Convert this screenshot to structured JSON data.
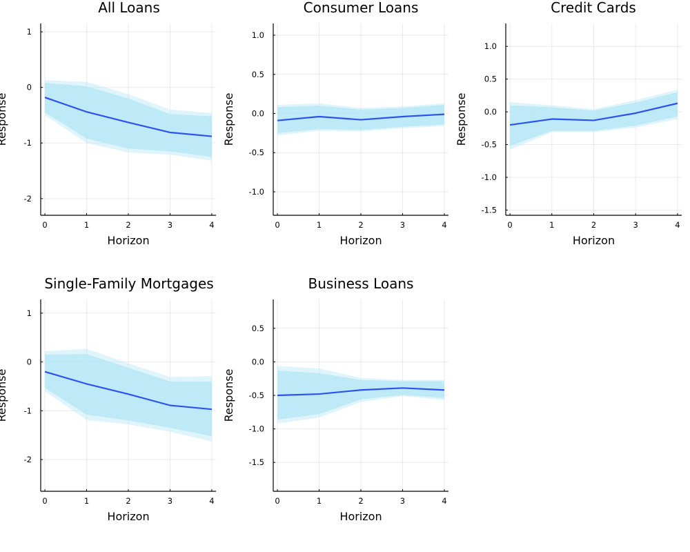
{
  "chart_data": [
    {
      "type": "line",
      "title": "All Loans",
      "xlabel": "Horizon",
      "ylabel": "Response",
      "x": [
        0,
        1,
        2,
        3,
        4
      ],
      "xticks": [
        "0",
        "1",
        "2",
        "3",
        "4"
      ],
      "yticks": [
        "-2",
        "-1",
        "0",
        "1"
      ],
      "xlim": [
        -0.1,
        4.1
      ],
      "ylim": [
        -2.3,
        1.15
      ],
      "grid": true,
      "series": [
        {
          "values": [
            -0.18,
            -0.44,
            -0.63,
            -0.81,
            -0.88
          ],
          "band_inner": {
            "lower": [
              -0.45,
              -0.92,
              -1.1,
              -1.15,
              -1.25
            ],
            "upper": [
              0.08,
              0.02,
              -0.2,
              -0.48,
              -0.52
            ]
          },
          "band_outer": {
            "lower": [
              -0.5,
              -1.0,
              -1.17,
              -1.21,
              -1.32
            ],
            "upper": [
              0.13,
              0.1,
              -0.12,
              -0.4,
              -0.46
            ]
          },
          "color": "#2b51f0",
          "band_color": "#b9e6f6"
        }
      ]
    },
    {
      "type": "line",
      "title": "Consumer Loans",
      "xlabel": "Horizon",
      "ylabel": "Response",
      "x": [
        0,
        1,
        2,
        3,
        4
      ],
      "xticks": [
        "0",
        "1",
        "2",
        "3",
        "4"
      ],
      "yticks": [
        "-1.0",
        "-0.5",
        "0.0",
        "0.5",
        "1.0"
      ],
      "xlim": [
        -0.1,
        4.1
      ],
      "ylim": [
        -1.3,
        1.15
      ],
      "grid": true,
      "series": [
        {
          "values": [
            -0.09,
            -0.04,
            -0.08,
            -0.04,
            -0.01
          ],
          "band_inner": {
            "lower": [
              -0.25,
              -0.2,
              -0.21,
              -0.17,
              -0.14
            ],
            "upper": [
              0.08,
              0.1,
              0.05,
              0.07,
              0.11
            ]
          },
          "band_outer": {
            "lower": [
              -0.28,
              -0.22,
              -0.23,
              -0.19,
              -0.16
            ],
            "upper": [
              0.11,
              0.13,
              0.07,
              0.09,
              0.13
            ]
          },
          "color": "#2b51f0",
          "band_color": "#b9e6f6"
        }
      ]
    },
    {
      "type": "line",
      "title": "Credit Cards",
      "xlabel": "Horizon",
      "ylabel": "Response",
      "x": [
        0,
        1,
        2,
        3,
        4
      ],
      "xticks": [
        "0",
        "1",
        "2",
        "3",
        "4"
      ],
      "yticks": [
        "-1.5",
        "-1.0",
        "-0.5",
        "0.0",
        "0.5",
        "1.0"
      ],
      "xlim": [
        -0.1,
        4.1
      ],
      "ylim": [
        -1.58,
        1.35
      ],
      "grid": true,
      "series": [
        {
          "values": [
            -0.2,
            -0.11,
            -0.13,
            -0.02,
            0.13
          ],
          "band_inner": {
            "lower": [
              -0.52,
              -0.29,
              -0.29,
              -0.21,
              -0.07
            ],
            "upper": [
              0.1,
              0.07,
              0.02,
              0.14,
              0.3
            ]
          },
          "band_outer": {
            "lower": [
              -0.58,
              -0.31,
              -0.31,
              -0.24,
              -0.11
            ],
            "upper": [
              0.15,
              0.1,
              0.04,
              0.18,
              0.34
            ]
          },
          "color": "#2b51f0",
          "band_color": "#b9e6f6"
        }
      ]
    },
    {
      "type": "line",
      "title": "Single-Family Mortgages",
      "xlabel": "Horizon",
      "ylabel": "Response",
      "x": [
        0,
        1,
        2,
        3,
        4
      ],
      "xticks": [
        "0",
        "1",
        "2",
        "3",
        "4"
      ],
      "yticks": [
        "-2",
        "-1",
        "0",
        "1"
      ],
      "xlim": [
        -0.1,
        4.1
      ],
      "ylim": [
        -2.65,
        1.28
      ],
      "grid": true,
      "series": [
        {
          "values": [
            -0.2,
            -0.45,
            -0.66,
            -0.89,
            -0.97
          ],
          "band_inner": {
            "lower": [
              -0.53,
              -1.08,
              -1.2,
              -1.35,
              -1.52
            ],
            "upper": [
              0.15,
              0.16,
              -0.12,
              -0.4,
              -0.4
            ]
          },
          "band_outer": {
            "lower": [
              -0.6,
              -1.19,
              -1.28,
              -1.43,
              -1.63
            ],
            "upper": [
              0.22,
              0.27,
              -0.03,
              -0.31,
              -0.29
            ]
          },
          "color": "#2b51f0",
          "band_color": "#b9e6f6"
        }
      ]
    },
    {
      "type": "line",
      "title": "Business Loans",
      "xlabel": "Horizon",
      "ylabel": "Response",
      "x": [
        0,
        1,
        2,
        3,
        4
      ],
      "xticks": [
        "0",
        "1",
        "2",
        "3",
        "4"
      ],
      "yticks": [
        "-1.5",
        "-1.0",
        "-0.5",
        "0.0",
        "0.5"
      ],
      "xlim": [
        -0.1,
        4.1
      ],
      "ylim": [
        -1.93,
        0.93
      ],
      "grid": true,
      "series": [
        {
          "values": [
            -0.5,
            -0.48,
            -0.42,
            -0.39,
            -0.42
          ],
          "band_inner": {
            "lower": [
              -0.86,
              -0.78,
              -0.56,
              -0.49,
              -0.54
            ],
            "upper": [
              -0.13,
              -0.17,
              -0.27,
              -0.29,
              -0.29
            ]
          },
          "band_outer": {
            "lower": [
              -0.92,
              -0.83,
              -0.6,
              -0.51,
              -0.57
            ],
            "upper": [
              -0.06,
              -0.1,
              -0.24,
              -0.27,
              -0.27
            ]
          },
          "color": "#2b51f0",
          "band_color": "#b9e6f6"
        }
      ]
    }
  ]
}
